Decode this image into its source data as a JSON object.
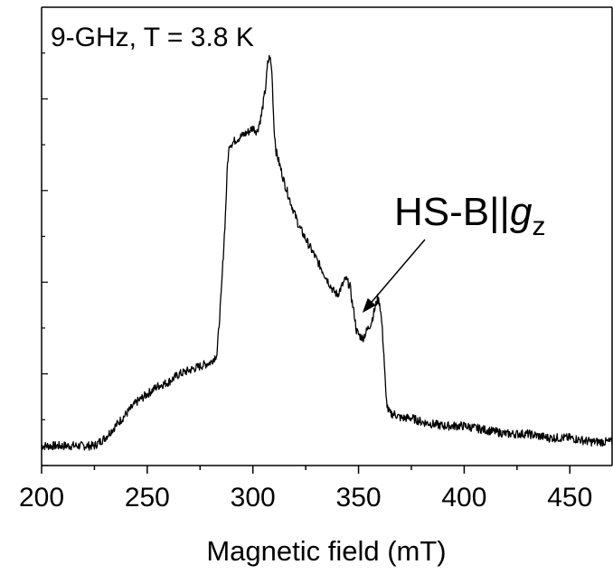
{
  "chart_data": {
    "type": "line",
    "title": "",
    "xlabel": "Magnetic field (mT)",
    "ylabel": "",
    "xlim": [
      200,
      470
    ],
    "ylim": [
      0,
      1
    ],
    "x_ticks": [
      200,
      250,
      300,
      350,
      400,
      450
    ],
    "x_tick_labels": [
      "200",
      "250",
      "300",
      "350",
      "400",
      "450"
    ],
    "y_tick_labels_shown": false,
    "grid": false,
    "line_color": "#000000",
    "annotations": {
      "condition": "9-GHz, T = 3.8 K",
      "feature_label": "HS-B||",
      "feature_symbol": "g",
      "feature_subscript": "z",
      "arrow_target": {
        "x": 351,
        "y": 0.35
      }
    },
    "series": [
      {
        "x": [
          200,
          210,
          220,
          225,
          230,
          235,
          240,
          245,
          250,
          255,
          260,
          265,
          270,
          275,
          280,
          283,
          285,
          287,
          288,
          289,
          290,
          292,
          295,
          298,
          300,
          302,
          304,
          306,
          307,
          308,
          309,
          310,
          311,
          312,
          313,
          315,
          318,
          320,
          322,
          325,
          330,
          335,
          338,
          340,
          342,
          344,
          345,
          346,
          347,
          348,
          349,
          350,
          352,
          354,
          356,
          358,
          359,
          360,
          361,
          362,
          363,
          364,
          365,
          367,
          370,
          375,
          380,
          390,
          400,
          410,
          420,
          430,
          440,
          450,
          460,
          470
        ],
        "y": [
          0.02,
          0.02,
          0.02,
          0.02,
          0.04,
          0.07,
          0.1,
          0.13,
          0.15,
          0.17,
          0.18,
          0.2,
          0.21,
          0.22,
          0.23,
          0.25,
          0.4,
          0.6,
          0.73,
          0.78,
          0.78,
          0.79,
          0.8,
          0.81,
          0.82,
          0.81,
          0.85,
          0.92,
          0.98,
          1.0,
          0.96,
          0.82,
          0.76,
          0.74,
          0.72,
          0.68,
          0.63,
          0.6,
          0.57,
          0.54,
          0.49,
          0.44,
          0.41,
          0.4,
          0.42,
          0.44,
          0.43,
          0.42,
          0.38,
          0.35,
          0.31,
          0.3,
          0.29,
          0.31,
          0.33,
          0.37,
          0.39,
          0.38,
          0.33,
          0.25,
          0.14,
          0.11,
          0.1,
          0.1,
          0.09,
          0.09,
          0.08,
          0.07,
          0.07,
          0.06,
          0.05,
          0.05,
          0.04,
          0.04,
          0.03,
          0.03
        ]
      }
    ]
  }
}
